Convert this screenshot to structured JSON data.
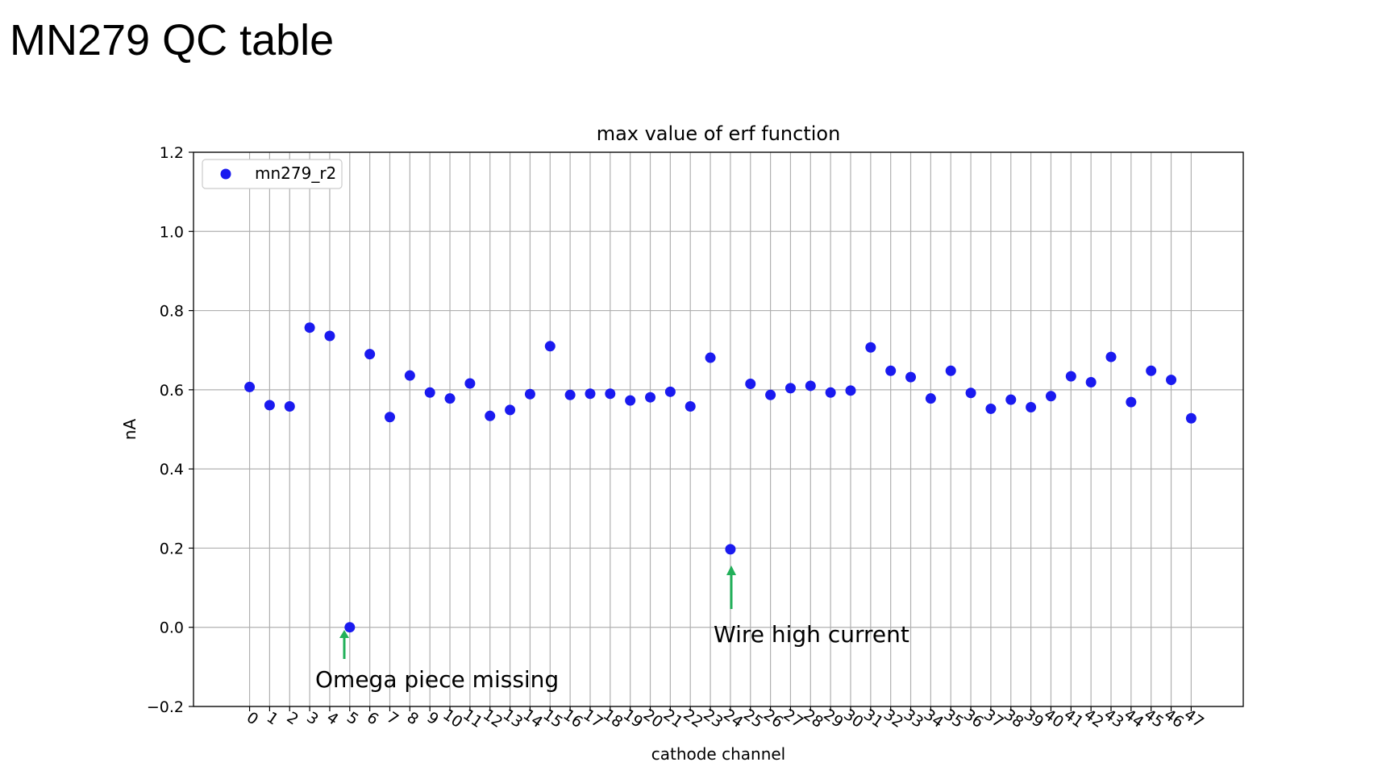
{
  "slide": {
    "title": "MN279 QC table"
  },
  "chart_data": {
    "type": "scatter",
    "title": "max value of erf function",
    "xlabel": "cathode channel",
    "ylabel": "nA",
    "xlim": [
      -2.8,
      49.6
    ],
    "ylim": [
      -0.2,
      1.2
    ],
    "yticks": [
      -0.2,
      0.0,
      0.2,
      0.4,
      0.6,
      0.8,
      1.0,
      1.2
    ],
    "ytick_labels": [
      "−0.2",
      "0.0",
      "0.2",
      "0.4",
      "0.6",
      "0.8",
      "1.0",
      "1.2"
    ],
    "xticks": [
      0,
      1,
      2,
      3,
      4,
      5,
      6,
      7,
      8,
      9,
      10,
      11,
      12,
      13,
      14,
      15,
      16,
      17,
      18,
      19,
      20,
      21,
      22,
      23,
      24,
      25,
      26,
      27,
      28,
      29,
      30,
      31,
      32,
      33,
      34,
      35,
      36,
      37,
      38,
      39,
      40,
      41,
      42,
      43,
      44,
      45,
      46,
      47
    ],
    "grid": true,
    "legend_position": "upper-left",
    "series": [
      {
        "name": "mn279_r2",
        "color": "#1a1aef",
        "x": [
          0,
          1,
          2,
          3,
          4,
          5,
          6,
          7,
          8,
          9,
          10,
          11,
          12,
          13,
          14,
          15,
          16,
          17,
          18,
          19,
          20,
          21,
          22,
          23,
          24,
          25,
          26,
          27,
          28,
          29,
          30,
          31,
          32,
          33,
          34,
          35,
          36,
          37,
          38,
          39,
          40,
          41,
          42,
          43,
          44,
          45,
          46,
          47
        ],
        "y": [
          0.607,
          0.561,
          0.558,
          0.757,
          0.736,
          0.0,
          0.69,
          0.531,
          0.636,
          0.593,
          0.578,
          0.616,
          0.534,
          0.549,
          0.589,
          0.71,
          0.587,
          0.59,
          0.59,
          0.573,
          0.581,
          0.595,
          0.558,
          0.681,
          0.197,
          0.615,
          0.587,
          0.604,
          0.61,
          0.593,
          0.598,
          0.707,
          0.648,
          0.632,
          0.578,
          0.648,
          0.592,
          0.552,
          0.575,
          0.556,
          0.584,
          0.634,
          0.619,
          0.683,
          0.569,
          0.648,
          0.625,
          0.528
        ]
      }
    ],
    "annotations": [
      {
        "text": "Omega piece missing",
        "x": 5,
        "y": 0.0,
        "arrow_color": "#22b05a"
      },
      {
        "text": "Wire high current",
        "x": 24,
        "y": 0.197,
        "arrow_color": "#22b05a"
      }
    ]
  }
}
